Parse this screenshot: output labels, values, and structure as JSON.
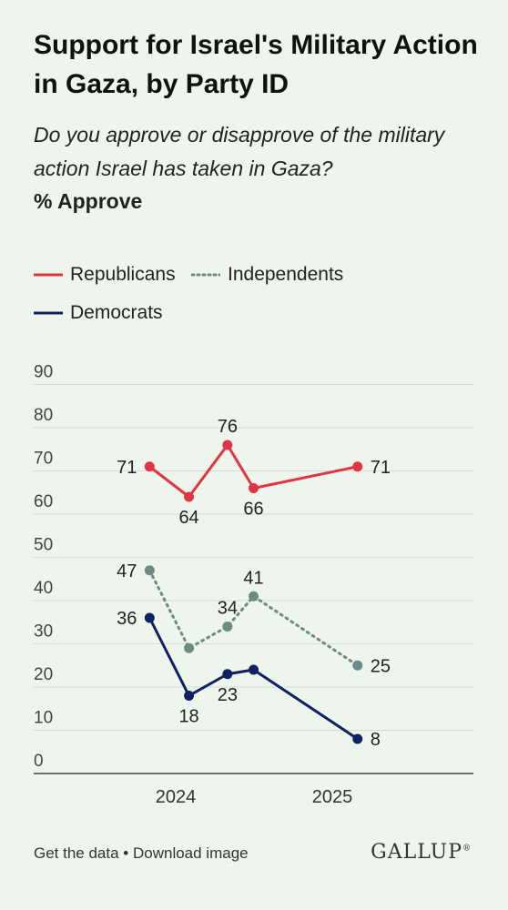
{
  "title": "Support for Israel's Military Action in Gaza, by Party ID",
  "subtitle": "Do you approve or disapprove of the military action Israel has taken in Gaza?",
  "measure": "% Approve",
  "footer": {
    "get_data": "Get the data",
    "separator": " • ",
    "download": "Download image"
  },
  "logo": "GALLUP",
  "colors": {
    "republicans": "#e03444",
    "independents": "#6d8b83",
    "democrats": "#0f2160",
    "grid": "#d4dcd2",
    "axis": "#444444"
  },
  "chart_data": {
    "type": "line",
    "xaxis_type": "date",
    "x_ticks": [
      "2024",
      "2025"
    ],
    "x_tick_dates": [
      "2024-01-01",
      "2025-01-01"
    ],
    "ylim": [
      0,
      90
    ],
    "y_ticks": [
      0,
      10,
      20,
      30,
      40,
      50,
      60,
      70,
      80,
      90
    ],
    "grid": true,
    "legend_position": "top-left",
    "series": [
      {
        "name": "Republicans",
        "style": "solid",
        "color": "#e03444",
        "x": [
          "2023-11-01",
          "2024-02-01",
          "2024-05-01",
          "2024-07-01",
          "2025-03-01"
        ],
        "values": [
          71,
          64,
          76,
          66,
          71
        ]
      },
      {
        "name": "Independents",
        "style": "dotted",
        "color": "#6d8b83",
        "x": [
          "2023-11-01",
          "2024-02-01",
          "2024-05-01",
          "2024-07-01",
          "2025-03-01"
        ],
        "values": [
          47,
          29,
          34,
          41,
          25
        ]
      },
      {
        "name": "Democrats",
        "style": "solid",
        "color": "#0f2160",
        "x": [
          "2023-11-01",
          "2024-02-01",
          "2024-05-01",
          "2024-07-01",
          "2025-03-01"
        ],
        "values": [
          36,
          18,
          23,
          24,
          8
        ]
      }
    ],
    "data_labels": [
      {
        "series": "Republicans",
        "index": 0,
        "text": "71",
        "pos": "left"
      },
      {
        "series": "Republicans",
        "index": 1,
        "text": "64",
        "pos": "below"
      },
      {
        "series": "Republicans",
        "index": 2,
        "text": "76",
        "pos": "above"
      },
      {
        "series": "Republicans",
        "index": 3,
        "text": "66",
        "pos": "below"
      },
      {
        "series": "Republicans",
        "index": 4,
        "text": "71",
        "pos": "right"
      },
      {
        "series": "Independents",
        "index": 0,
        "text": "47",
        "pos": "left"
      },
      {
        "series": "Independents",
        "index": 2,
        "text": "34",
        "pos": "above"
      },
      {
        "series": "Independents",
        "index": 3,
        "text": "41",
        "pos": "above"
      },
      {
        "series": "Independents",
        "index": 4,
        "text": "25",
        "pos": "right"
      },
      {
        "series": "Democrats",
        "index": 0,
        "text": "36",
        "pos": "left"
      },
      {
        "series": "Democrats",
        "index": 1,
        "text": "18",
        "pos": "below"
      },
      {
        "series": "Democrats",
        "index": 2,
        "text": "23",
        "pos": "below"
      },
      {
        "series": "Democrats",
        "index": 4,
        "text": "8",
        "pos": "right"
      }
    ]
  }
}
